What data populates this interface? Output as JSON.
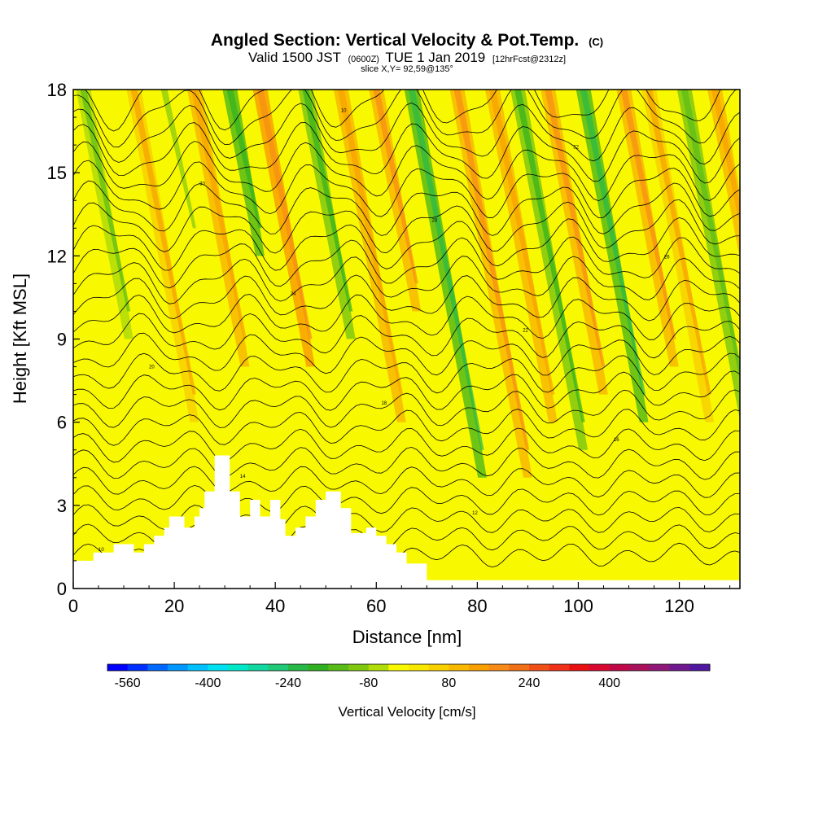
{
  "chart_data": {
    "type": "heatmap",
    "title": "Angled Section: Vertical Velocity & Pot.Temp.",
    "title_unit": "(C)",
    "subtitle": {
      "pre": "Valid 1500 JST",
      "utc": "(0600Z)",
      "date": "TUE 1 Jan 2019",
      "fcst": "[12hrFcst@2312z]"
    },
    "slice_label": "slice X,Y= 92,59@135°",
    "xlabel": "Distance [nm]",
    "ylabel": "Height [Kft MSL]",
    "xlim": [
      0,
      132
    ],
    "ylim": [
      0,
      18
    ],
    "x_ticks": [
      "0",
      "20",
      "40",
      "60",
      "80",
      "100",
      "120"
    ],
    "x_tick_values": [
      0,
      20,
      40,
      60,
      80,
      100,
      120
    ],
    "y_ticks": [
      "0",
      "3",
      "6",
      "9",
      "12",
      "15",
      "18"
    ],
    "y_tick_values": [
      0,
      3,
      6,
      9,
      12,
      15,
      18
    ],
    "fill_variable": "Vertical Velocity [cm/s]",
    "contour_variable": "Potential temperature (C)",
    "colorbar": {
      "label": "Vertical Velocity [cm/s]",
      "tick_labels": [
        "-560",
        "-400",
        "-240",
        "-80",
        "80",
        "240",
        "400"
      ],
      "tick_values": [
        -560,
        -400,
        -240,
        -80,
        80,
        240,
        400
      ],
      "range": [
        -600,
        600
      ],
      "step": 40,
      "colors": [
        "#0000ff",
        "#0030ff",
        "#0068ff",
        "#0098ff",
        "#00c0ff",
        "#00e0f0",
        "#00e8c8",
        "#10d8a0",
        "#20c878",
        "#28b848",
        "#30b020",
        "#58bc18",
        "#80c810",
        "#b0dc08",
        "#f8f800",
        "#f8e800",
        "#f8d000",
        "#f8b800",
        "#f8a000",
        "#f88a18",
        "#f07018",
        "#f05018",
        "#f03018",
        "#e81010",
        "#d80830",
        "#c00848",
        "#a8105c",
        "#901878",
        "#701890",
        "#5018a0"
      ]
    },
    "vertical_velocity_bands": [
      {
        "x": 2,
        "w": -80,
        "top": 18,
        "bottom": 9
      },
      {
        "x": 12,
        "w": 60,
        "top": 18,
        "bottom": 6
      },
      {
        "x": 18,
        "w": -40,
        "top": 18,
        "bottom": 12
      },
      {
        "x": 24,
        "w": 80,
        "top": 18,
        "bottom": 8
      },
      {
        "x": 31,
        "w": -140,
        "top": 18,
        "bottom": 12
      },
      {
        "x": 37,
        "w": 120,
        "top": 18,
        "bottom": 8
      },
      {
        "x": 46,
        "w": -120,
        "top": 18,
        "bottom": 9
      },
      {
        "x": 53,
        "w": 80,
        "top": 18,
        "bottom": 6
      },
      {
        "x": 60,
        "w": 100,
        "top": 18,
        "bottom": 10
      },
      {
        "x": 67,
        "w": -160,
        "top": 18,
        "bottom": 4
      },
      {
        "x": 76,
        "w": 100,
        "top": 18,
        "bottom": 4
      },
      {
        "x": 83,
        "w": 80,
        "top": 18,
        "bottom": 6
      },
      {
        "x": 88,
        "w": -120,
        "top": 18,
        "bottom": 5
      },
      {
        "x": 94,
        "w": 100,
        "top": 18,
        "bottom": 7
      },
      {
        "x": 101,
        "w": -160,
        "top": 18,
        "bottom": 6
      },
      {
        "x": 109,
        "w": 100,
        "top": 18,
        "bottom": 8
      },
      {
        "x": 114,
        "w": 60,
        "top": 18,
        "bottom": 6
      },
      {
        "x": 121,
        "w": -100,
        "top": 18,
        "bottom": 5
      },
      {
        "x": 127,
        "w": 80,
        "top": 18,
        "bottom": 8
      }
    ],
    "terrain_profile": [
      [
        0,
        1.0
      ],
      [
        4,
        1.0
      ],
      [
        4,
        1.3
      ],
      [
        8,
        1.3
      ],
      [
        8,
        1.6
      ],
      [
        12,
        1.6
      ],
      [
        12,
        1.3
      ],
      [
        14,
        1.3
      ],
      [
        14,
        1.6
      ],
      [
        16,
        1.6
      ],
      [
        16,
        1.9
      ],
      [
        18,
        1.9
      ],
      [
        18,
        2.2
      ],
      [
        19,
        2.2
      ],
      [
        19,
        2.6
      ],
      [
        22,
        2.6
      ],
      [
        22,
        2.2
      ],
      [
        24,
        2.2
      ],
      [
        24,
        2.6
      ],
      [
        25,
        2.6
      ],
      [
        25,
        2.9
      ],
      [
        26,
        2.9
      ],
      [
        26,
        3.5
      ],
      [
        28,
        3.5
      ],
      [
        28,
        4.8
      ],
      [
        31,
        4.8
      ],
      [
        31,
        3.5
      ],
      [
        33,
        3.5
      ],
      [
        33,
        2.6
      ],
      [
        35,
        2.6
      ],
      [
        35,
        3.2
      ],
      [
        37,
        3.2
      ],
      [
        37,
        2.6
      ],
      [
        39,
        2.6
      ],
      [
        39,
        3.2
      ],
      [
        41,
        3.2
      ],
      [
        41,
        2.5
      ],
      [
        42,
        2.5
      ],
      [
        42,
        1.9
      ],
      [
        44,
        1.9
      ],
      [
        44,
        2.2
      ],
      [
        46,
        2.2
      ],
      [
        46,
        2.6
      ],
      [
        48,
        2.6
      ],
      [
        48,
        3.2
      ],
      [
        50,
        3.2
      ],
      [
        50,
        3.5
      ],
      [
        53,
        3.5
      ],
      [
        53,
        2.9
      ],
      [
        55,
        2.9
      ],
      [
        55,
        2.0
      ],
      [
        58,
        2.0
      ],
      [
        58,
        2.2
      ],
      [
        60,
        2.2
      ],
      [
        60,
        1.9
      ],
      [
        62,
        1.9
      ],
      [
        62,
        1.6
      ],
      [
        64,
        1.6
      ],
      [
        64,
        1.3
      ],
      [
        66,
        1.3
      ],
      [
        66,
        0.9
      ],
      [
        70,
        0.9
      ],
      [
        70,
        0.3
      ],
      [
        132,
        0.3
      ]
    ],
    "contour_labels": [
      "10",
      "12",
      "14",
      "16",
      "18",
      "20",
      "22",
      "24",
      "26",
      "28",
      "30",
      "32"
    ]
  }
}
